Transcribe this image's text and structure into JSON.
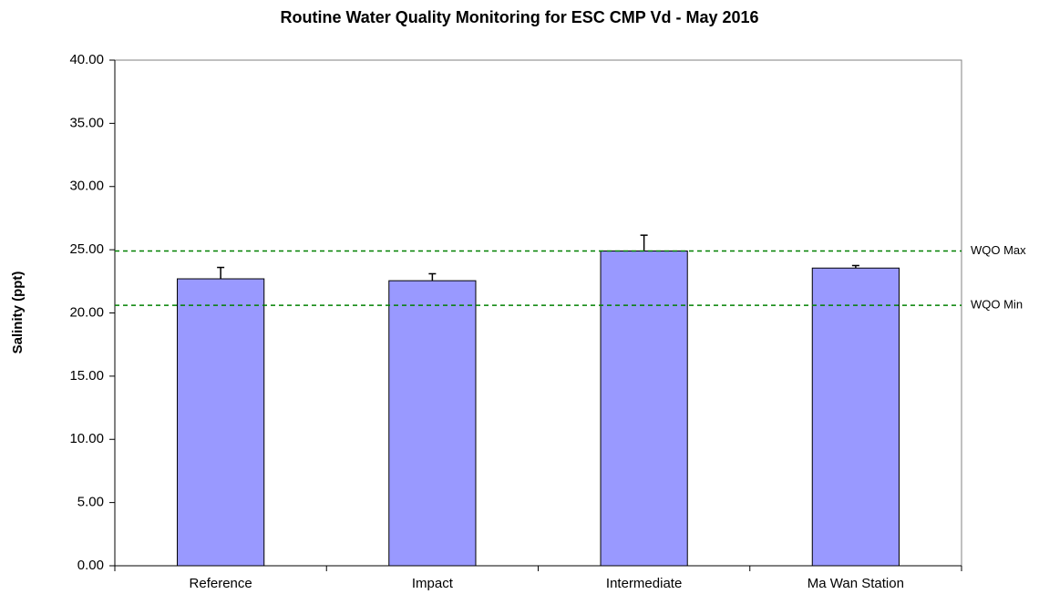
{
  "chart_data": {
    "type": "bar",
    "title": "Routine Water Quality Monitoring for ESC CMP Vd - May 2016",
    "y_label": "Salinity (ppt)",
    "categories": [
      "Reference",
      "Impact",
      "Intermediate",
      "Ma Wan Station"
    ],
    "values": [
      22.7,
      22.55,
      24.9,
      23.55
    ],
    "errors": [
      0.9,
      0.55,
      1.25,
      0.2
    ],
    "color": "#9999ff",
    "ylim": [
      0,
      40
    ],
    "yticks": [
      {
        "value": 0,
        "label": "0.00"
      },
      {
        "value": 5,
        "label": "5.00"
      },
      {
        "value": 10,
        "label": "10.00"
      },
      {
        "value": 15,
        "label": "15.00"
      },
      {
        "value": 20,
        "label": "20.00"
      },
      {
        "value": 25,
        "label": "25.00"
      },
      {
        "value": 30,
        "label": "30.00"
      },
      {
        "value": 35,
        "label": "35.00"
      },
      {
        "value": 40,
        "label": "40.00"
      }
    ],
    "reference_lines": [
      {
        "label": "WQO Max",
        "value": 24.9,
        "color": "#008000"
      },
      {
        "label": "WQO Min",
        "value": 20.6,
        "color": "#008000"
      }
    ],
    "grid": false
  }
}
